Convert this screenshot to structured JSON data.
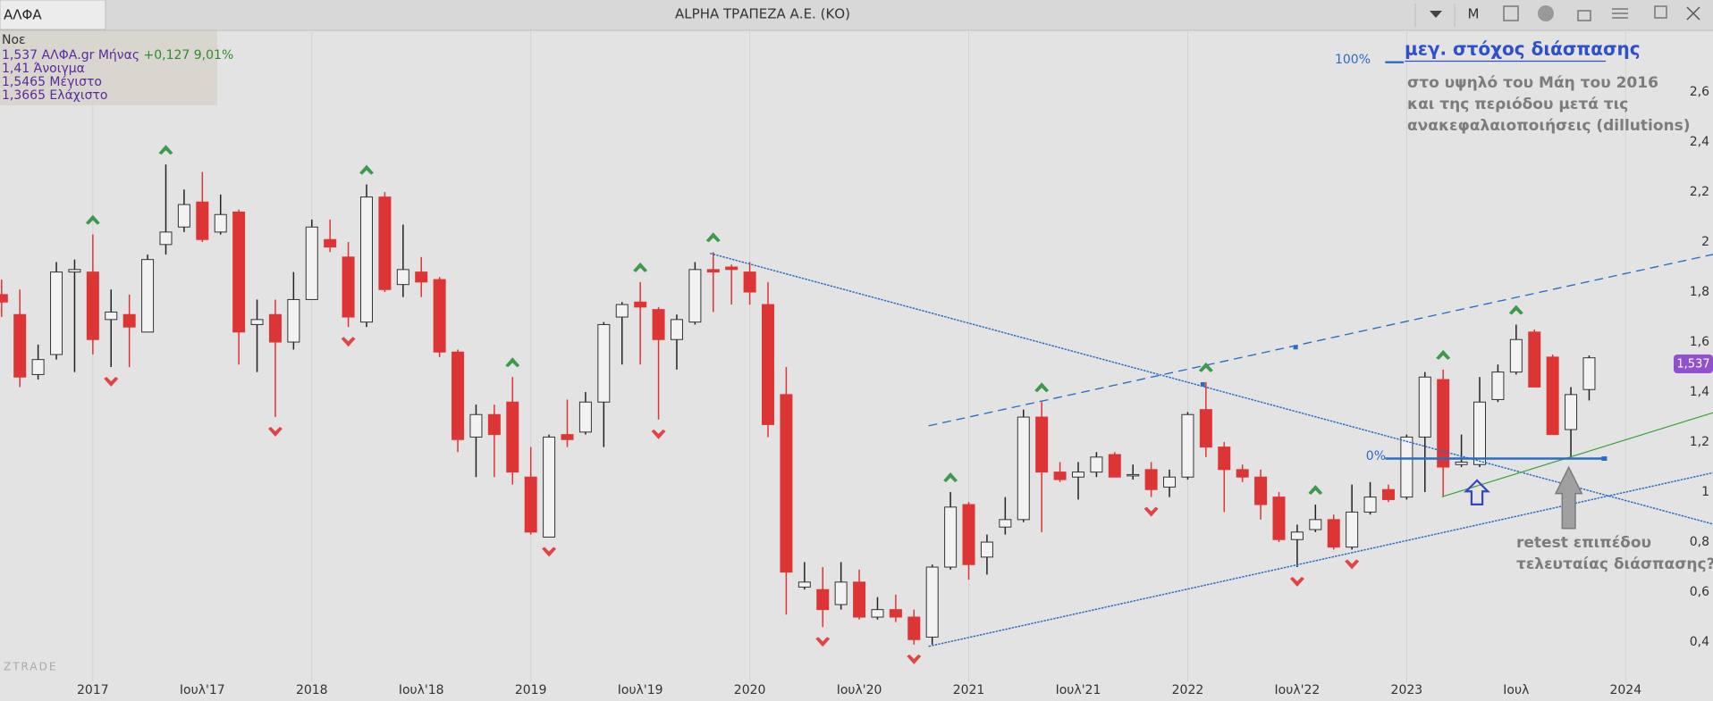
{
  "header": {
    "symbol": "ΑΛΦΑ",
    "menu": "M"
  },
  "info": {
    "date": "Νοε",
    "last": "1,537",
    "change": "+0,127 9,01%",
    "open": "1,41 Άνοιγμα",
    "high": "1,5465 Μέγιστο",
    "low": "1,3665 Ελάχιστο"
  },
  "watermark": "ZTRADE",
  "annotations": {
    "target_title": "μεγ. στόχος διάσπασης",
    "target_note": [
      "στο υψηλό του Μάη του 2016",
      "και της περιόδου μετά τις",
      "ανακεφαλαιοποιήσεις (dillutions)"
    ],
    "pct100": "100%",
    "pct0": "0%",
    "retest": [
      "retest επιπέδου",
      "τελευταίας διάσπασης?"
    ],
    "price_tag": "1,537"
  },
  "chart_data": {
    "type": "candlestick",
    "title": "ALPHA ΤΡΑΠΕΖΑ Α.Ε. (ΚΟ)",
    "categories": [
      null,
      null,
      null,
      null,
      null,
      "2017",
      null,
      null,
      null,
      null,
      null,
      "Ιουλ'17",
      null,
      null,
      null,
      null,
      null,
      "2018",
      null,
      null,
      null,
      null,
      null,
      "Ιουλ'18",
      null,
      null,
      null,
      null,
      null,
      "2019",
      null,
      null,
      null,
      null,
      null,
      "Ιουλ'19",
      null,
      null,
      null,
      null,
      null,
      "2020",
      null,
      null,
      null,
      null,
      null,
      "Ιουλ'20",
      null,
      null,
      null,
      null,
      null,
      "2021",
      null,
      null,
      null,
      null,
      null,
      "Ιουλ'21",
      null,
      null,
      null,
      null,
      null,
      "2022",
      null,
      null,
      null,
      null,
      null,
      "Ιουλ'22",
      null,
      null,
      null,
      null,
      null,
      "2023",
      null,
      null,
      null,
      null,
      null,
      "Ιουλ",
      null,
      null,
      null,
      null,
      null,
      "2024"
    ],
    "series": [
      {
        "name": "ΑΛΦΑ.gr Μήνας",
        "up_color": "#f2f2f2",
        "down_color": "#dd3535",
        "open": [
          1.79,
          1.71,
          1.47,
          1.55,
          1.88,
          1.88,
          1.69,
          1.71,
          1.64,
          1.99,
          2.06,
          2.16,
          2.04,
          2.12,
          1.67,
          1.71,
          1.6,
          1.77,
          2.01,
          1.94,
          1.68,
          2.18,
          1.83,
          1.88,
          1.85,
          1.56,
          1.22,
          1.31,
          1.36,
          1.06,
          0.82,
          1.23,
          1.24,
          1.36,
          1.7,
          1.76,
          1.73,
          1.61,
          1.68,
          1.89,
          1.9,
          1.88,
          1.75,
          1.39,
          0.62,
          0.61,
          0.55,
          0.64,
          0.5,
          0.53,
          0.5,
          0.42,
          0.7,
          0.95,
          0.74,
          0.86,
          0.89,
          1.3,
          1.08,
          1.06,
          1.08,
          1.15,
          1.07,
          1.09,
          1.02,
          1.06,
          1.33,
          1.18,
          1.09,
          1.06,
          0.98,
          0.81,
          0.85,
          0.89,
          0.78,
          0.92,
          1.01,
          0.98,
          1.22,
          1.45,
          1.11,
          1.11,
          1.37,
          1.48,
          1.64,
          1.54,
          1.25,
          1.41,
          null,
          null
        ],
        "high": [
          1.85,
          1.81,
          1.59,
          1.92,
          1.93,
          2.03,
          1.81,
          1.79,
          1.95,
          2.31,
          2.21,
          2.28,
          2.19,
          2.13,
          1.77,
          1.77,
          1.88,
          2.09,
          2.09,
          2.0,
          2.23,
          2.2,
          2.07,
          1.94,
          1.86,
          1.57,
          1.35,
          1.35,
          1.46,
          1.18,
          1.23,
          1.37,
          1.4,
          1.68,
          1.76,
          1.84,
          1.74,
          1.71,
          1.92,
          1.96,
          1.91,
          1.92,
          1.84,
          1.5,
          0.72,
          0.7,
          0.72,
          0.69,
          0.58,
          0.59,
          0.53,
          0.71,
          1.0,
          0.96,
          0.83,
          0.98,
          1.33,
          1.36,
          1.12,
          1.12,
          1.16,
          1.16,
          1.11,
          1.12,
          1.09,
          1.32,
          1.44,
          1.2,
          1.11,
          1.09,
          1.0,
          0.87,
          0.95,
          0.91,
          1.03,
          1.04,
          1.03,
          1.23,
          1.48,
          1.49,
          1.23,
          1.46,
          1.51,
          1.67,
          1.65,
          1.55,
          1.42,
          1.5465,
          null,
          null
        ],
        "low": [
          1.7,
          1.42,
          1.45,
          1.53,
          1.48,
          1.55,
          1.5,
          1.5,
          1.64,
          1.95,
          2.04,
          2.0,
          2.03,
          1.51,
          1.48,
          1.3,
          1.57,
          1.77,
          1.96,
          1.66,
          1.66,
          1.8,
          1.78,
          1.78,
          1.54,
          1.16,
          1.06,
          1.06,
          1.03,
          0.83,
          0.82,
          1.18,
          1.23,
          1.18,
          1.51,
          1.51,
          1.29,
          1.49,
          1.67,
          1.72,
          1.75,
          1.75,
          1.22,
          0.51,
          0.61,
          0.46,
          0.53,
          0.49,
          0.49,
          0.48,
          0.39,
          0.39,
          0.69,
          0.65,
          0.67,
          0.83,
          0.88,
          0.84,
          1.04,
          0.97,
          1.06,
          1.06,
          1.05,
          0.98,
          0.98,
          1.05,
          1.14,
          0.92,
          1.04,
          0.89,
          0.8,
          0.7,
          0.84,
          0.77,
          0.77,
          0.91,
          0.96,
          0.97,
          1.0,
          0.98,
          1.1,
          1.1,
          1.36,
          1.47,
          1.42,
          1.23,
          1.14,
          1.3665,
          null,
          null
        ],
        "close": [
          1.76,
          1.46,
          1.53,
          1.88,
          1.89,
          1.61,
          1.72,
          1.66,
          1.93,
          2.04,
          2.15,
          2.01,
          2.11,
          1.64,
          1.69,
          1.6,
          1.77,
          2.06,
          1.98,
          1.7,
          2.18,
          1.81,
          1.89,
          1.84,
          1.56,
          1.21,
          1.31,
          1.23,
          1.08,
          0.84,
          1.22,
          1.21,
          1.36,
          1.67,
          1.75,
          1.74,
          1.61,
          1.69,
          1.89,
          1.88,
          1.89,
          1.8,
          1.27,
          0.68,
          0.64,
          0.53,
          0.64,
          0.5,
          0.53,
          0.5,
          0.41,
          0.7,
          0.94,
          0.71,
          0.8,
          0.89,
          1.3,
          1.08,
          1.05,
          1.08,
          1.14,
          1.06,
          1.07,
          1.01,
          1.06,
          1.31,
          1.18,
          1.09,
          1.06,
          0.95,
          0.81,
          0.84,
          0.89,
          0.78,
          0.92,
          0.98,
          0.97,
          1.22,
          1.46,
          1.1,
          1.12,
          1.36,
          1.48,
          1.61,
          1.42,
          1.23,
          1.39,
          1.537,
          null,
          null
        ]
      }
    ],
    "ylim": [
      0.243,
      2.843
    ],
    "yticks": [
      {
        "value": 2.6,
        "label": "2,6"
      },
      {
        "value": 2.4,
        "label": "2,4"
      },
      {
        "value": 2.2,
        "label": "2,2"
      },
      2,
      {
        "value": 1.8,
        "label": "1,8"
      },
      {
        "value": 1.6,
        "label": "1,6"
      },
      {
        "value": 1.4,
        "label": "1,4"
      },
      {
        "value": 1.2,
        "label": "1,2"
      },
      1,
      {
        "value": 0.8,
        "label": "0,8"
      },
      {
        "value": 0.6,
        "label": "0,6"
      },
      {
        "value": 0.4,
        "label": "0,4"
      }
    ],
    "grid": true
  }
}
